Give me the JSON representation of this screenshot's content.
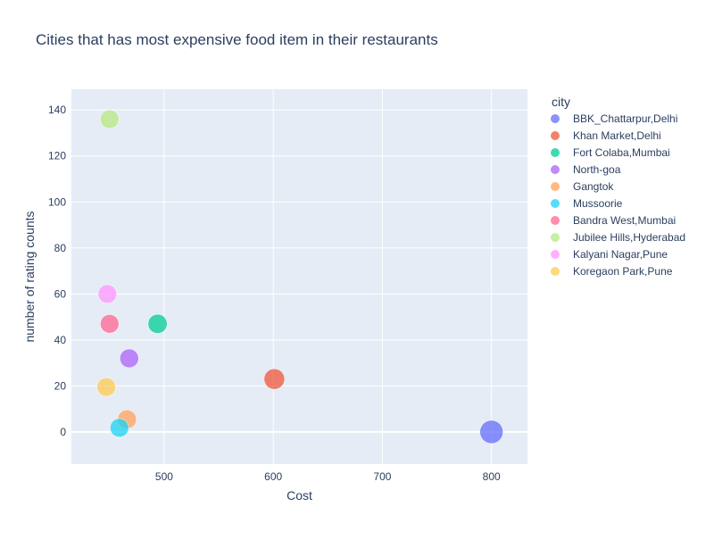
{
  "chart_data": {
    "type": "scatter",
    "title": "Cities that has most expensive food item in their restaurants",
    "xlabel": "Cost",
    "ylabel": "number of rating counts",
    "xlim": [
      415,
      833
    ],
    "ylim": [
      -14,
      149
    ],
    "x_ticks": [
      500,
      600,
      700,
      800
    ],
    "y_ticks": [
      0,
      20,
      40,
      60,
      80,
      100,
      120,
      140
    ],
    "grid": true,
    "legend_title": "city",
    "legend_position": "right",
    "series": [
      {
        "name": "BBK_Chattarpur,Delhi",
        "color": "#636efa",
        "points": [
          {
            "x": 800,
            "y": 0
          }
        ]
      },
      {
        "name": "Khan Market,Delhi",
        "color": "#EF553B",
        "points": [
          {
            "x": 601,
            "y": 23
          }
        ]
      },
      {
        "name": "Fort Colaba,Mumbai",
        "color": "#00cc96",
        "points": [
          {
            "x": 494,
            "y": 47
          }
        ]
      },
      {
        "name": "North-goa",
        "color": "#ab63fa",
        "points": [
          {
            "x": 468,
            "y": 32
          }
        ]
      },
      {
        "name": "Gangtok",
        "color": "#FFA15A",
        "points": [
          {
            "x": 466,
            "y": 5.5
          }
        ]
      },
      {
        "name": "Mussoorie",
        "color": "#19d3f3",
        "points": [
          {
            "x": 459,
            "y": 1.8
          }
        ]
      },
      {
        "name": "Bandra West,Mumbai",
        "color": "#FF6692",
        "points": [
          {
            "x": 450,
            "y": 47
          }
        ]
      },
      {
        "name": "Jubilee Hills,Hyderabad",
        "color": "#B6E880",
        "points": [
          {
            "x": 450,
            "y": 136
          }
        ]
      },
      {
        "name": "Kalyani Nagar,Pune",
        "color": "#FF97FF",
        "points": [
          {
            "x": 448,
            "y": 60
          }
        ]
      },
      {
        "name": "Koregaon Park,Pune",
        "color": "#FECB52",
        "points": [
          {
            "x": 447,
            "y": 19.5
          }
        ]
      }
    ]
  }
}
